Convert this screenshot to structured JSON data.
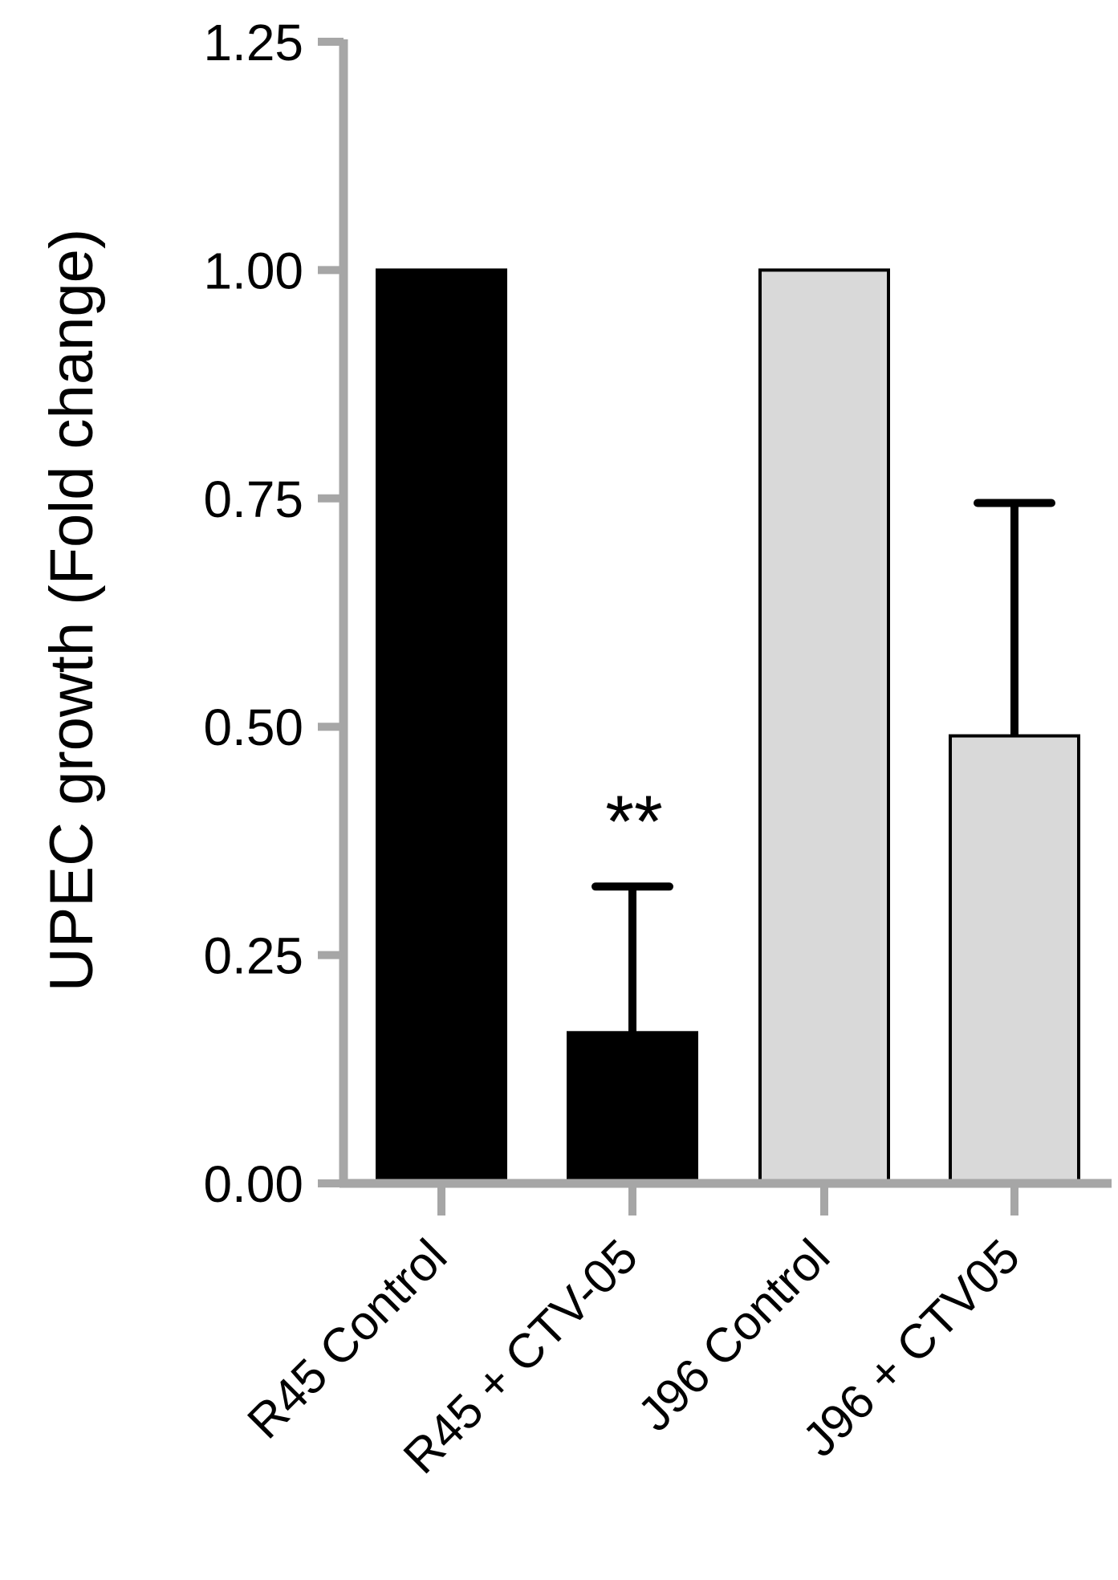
{
  "chart_data": {
    "type": "bar",
    "categories": [
      "R45 Control",
      "R45 + CTV-05",
      "J96 Control",
      "J96 + CTV05"
    ],
    "values": [
      1.0,
      0.165,
      1.0,
      0.49
    ],
    "error_upper": [
      null,
      0.325,
      null,
      0.745
    ],
    "bar_colors": [
      "#000000",
      "#000000",
      "#d9d9d9",
      "#d9d9d9"
    ],
    "annotations": [
      {
        "category": "R45 + CTV-05",
        "text": "**"
      }
    ],
    "ylabel": "UPEC growth (Fold change)",
    "xlabel": "",
    "ylim": [
      0,
      1.25
    ],
    "yticks": [
      "0.00",
      "0.25",
      "0.50",
      "0.75",
      "1.00",
      "1.25"
    ],
    "axis_color": "#a6a6a6",
    "grid": false
  }
}
